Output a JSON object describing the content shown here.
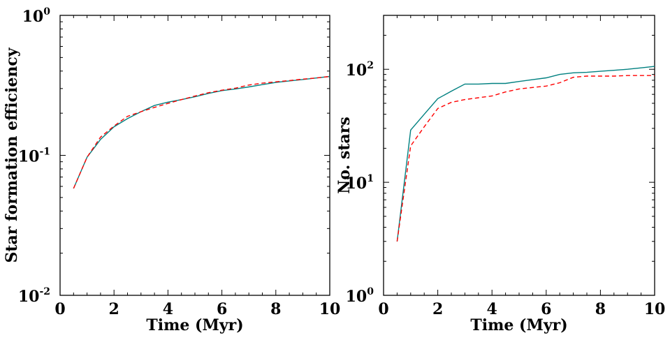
{
  "chart_data": [
    {
      "type": "line",
      "title": "",
      "xlabel": "Time (Myr)",
      "ylabel": "Star formation efficiency",
      "xlim": [
        0,
        10
      ],
      "ylim": [
        0.01,
        1
      ],
      "yscale": "log",
      "grid": false,
      "xticks": [
        "0",
        "2",
        "4",
        "6",
        "8",
        "10"
      ],
      "yticks": [
        {
          "base": "10",
          "exp": "-2"
        },
        {
          "base": "10",
          "exp": "-1"
        },
        {
          "base": "10",
          "exp": "0"
        }
      ],
      "series": [
        {
          "name": "solid",
          "color": "#008080",
          "style": "solid",
          "x": [
            0.5,
            1.0,
            1.5,
            2.0,
            2.5,
            3.0,
            3.5,
            4.0,
            4.5,
            5.0,
            5.5,
            6.0,
            6.5,
            7.0,
            7.5,
            8.0,
            8.5,
            9.0,
            9.5,
            10.0
          ],
          "y": [
            0.058,
            0.097,
            0.13,
            0.16,
            0.183,
            0.205,
            0.227,
            0.24,
            0.25,
            0.262,
            0.277,
            0.29,
            0.298,
            0.308,
            0.32,
            0.332,
            0.34,
            0.348,
            0.357,
            0.366
          ]
        },
        {
          "name": "dashed",
          "color": "#ff0000",
          "style": "dashed",
          "x": [
            0.5,
            1.0,
            1.5,
            2.0,
            2.5,
            3.0,
            3.5,
            4.0,
            4.5,
            5.0,
            5.5,
            6.0,
            6.5,
            7.0,
            7.5,
            8.0,
            8.5,
            9.0,
            9.5,
            10.0
          ],
          "y": [
            0.058,
            0.097,
            0.135,
            0.162,
            0.19,
            0.205,
            0.22,
            0.235,
            0.25,
            0.265,
            0.28,
            0.292,
            0.302,
            0.318,
            0.328,
            0.335,
            0.342,
            0.35,
            0.357,
            0.366
          ]
        }
      ]
    },
    {
      "type": "line",
      "title": "",
      "xlabel": "Time (Myr)",
      "ylabel": "No. stars",
      "xlim": [
        0,
        10
      ],
      "ylim": [
        1,
        300
      ],
      "yscale": "log",
      "grid": false,
      "xticks": [
        "0",
        "2",
        "4",
        "6",
        "8",
        "10"
      ],
      "yticks": [
        {
          "base": "10",
          "exp": "0"
        },
        {
          "base": "10",
          "exp": "1"
        },
        {
          "base": "10",
          "exp": "2"
        }
      ],
      "series": [
        {
          "name": "solid",
          "color": "#008080",
          "style": "solid",
          "x": [
            0.5,
            1.0,
            1.5,
            2.0,
            2.5,
            3.0,
            3.5,
            4.0,
            4.5,
            5.0,
            5.5,
            6.0,
            6.5,
            7.0,
            7.5,
            8.0,
            8.5,
            9.0,
            9.5,
            10.0
          ],
          "y": [
            3,
            29,
            40,
            55,
            64,
            74,
            74,
            75,
            75,
            78,
            81,
            84,
            90,
            93,
            94,
            96,
            98,
            100,
            103,
            106
          ]
        },
        {
          "name": "dashed",
          "color": "#ff0000",
          "style": "dashed",
          "x": [
            0.5,
            1.0,
            1.5,
            2.0,
            2.5,
            3.0,
            3.5,
            4.0,
            4.5,
            5.0,
            5.5,
            6.0,
            6.5,
            7.0,
            7.5,
            8.0,
            8.5,
            9.0,
            9.5,
            10.0
          ],
          "y": [
            3,
            21,
            31,
            45,
            51,
            54,
            56,
            58,
            63,
            67,
            69,
            71,
            76,
            85,
            87,
            87,
            87,
            88,
            88,
            88
          ]
        }
      ]
    }
  ]
}
